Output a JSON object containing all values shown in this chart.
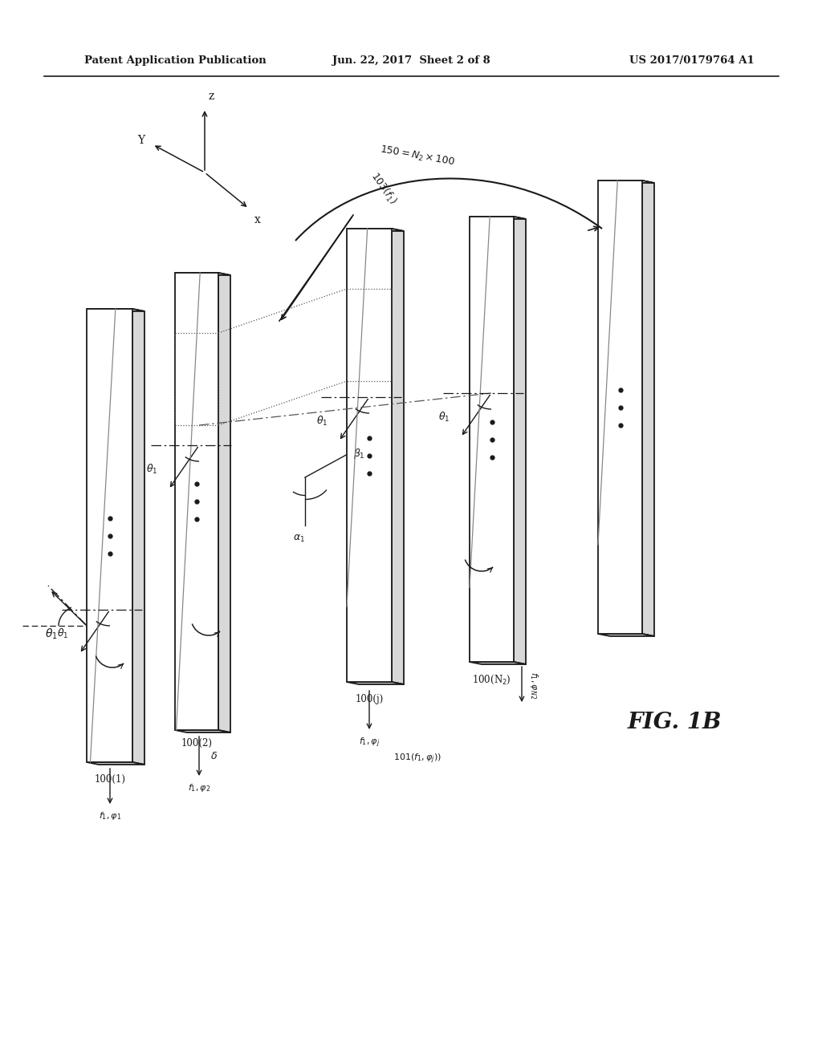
{
  "bg_color": "#ffffff",
  "header_left": "Patent Application Publication",
  "header_center": "Jun. 22, 2017  Sheet 2 of 8",
  "header_right": "US 2017/0179764 A1",
  "fig_label": "FIG. 1B"
}
